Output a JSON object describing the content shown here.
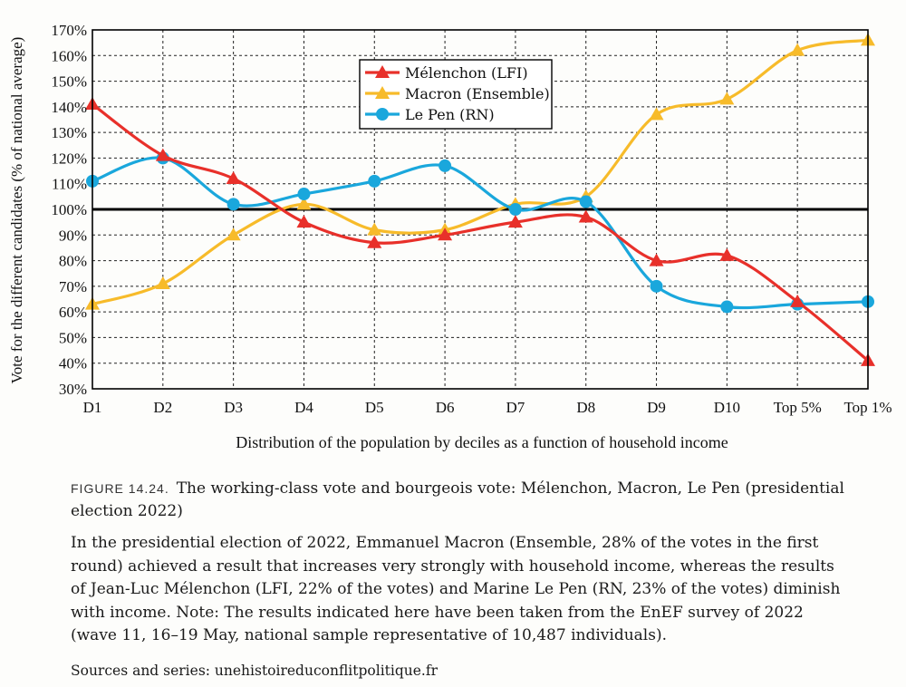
{
  "figure": {
    "label": "FIGURE 14.24.",
    "title": "The working-class vote and bourgeois vote: Mélenchon, Macron, Le Pen (presidential election 2022)",
    "description": "In the presidential election of 2022, Emmanuel Macron (Ensemble, 28% of the votes in the first round) achieved a result that increases very strongly with household income, whereas the results of Jean-Luc Mélenchon (LFI, 22% of the votes) and Marine Le Pen (RN, 23% of the votes) diminish with income. Note: The results indicated here have been taken from the EnEF survey of 2022 (wave 11, 16–19 May, national sample representative of 10,487 individuals).",
    "source": "Sources and series: unehistoireduconflitpolitique.fr"
  },
  "chart_data": {
    "type": "line",
    "xlabel": "Distribution of the population by deciles as a function of household income",
    "ylabel": "Vote for the different candidates (% of national average)",
    "categories": [
      "D1",
      "D2",
      "D3",
      "D4",
      "D5",
      "D6",
      "D7",
      "D8",
      "D9",
      "D10",
      "Top 5%",
      "Top 1%"
    ],
    "ylim": [
      30,
      170
    ],
    "yticks": [
      "30%",
      "40%",
      "50%",
      "60%",
      "70%",
      "80%",
      "90%",
      "100%",
      "110%",
      "120%",
      "130%",
      "140%",
      "150%",
      "160%",
      "170%"
    ],
    "grid": "dashed",
    "reference_line": 100,
    "legend_position": "top-center",
    "series": [
      {
        "name": "Mélenchon (LFI)",
        "color": "#e8302a",
        "marker": "triangle",
        "values": [
          141,
          121,
          112,
          95,
          87,
          90,
          95,
          97,
          80,
          82,
          64,
          41
        ]
      },
      {
        "name": "Macron (Ensemble)",
        "color": "#f7bb2a",
        "marker": "triangle",
        "values": [
          63,
          71,
          90,
          102,
          92,
          92,
          102,
          105,
          137,
          143,
          162,
          166
        ]
      },
      {
        "name": "Le Pen (RN)",
        "color": "#1aa7dc",
        "marker": "circle",
        "values": [
          111,
          120,
          102,
          106,
          111,
          117,
          100,
          103,
          70,
          62,
          63,
          64
        ]
      }
    ]
  }
}
